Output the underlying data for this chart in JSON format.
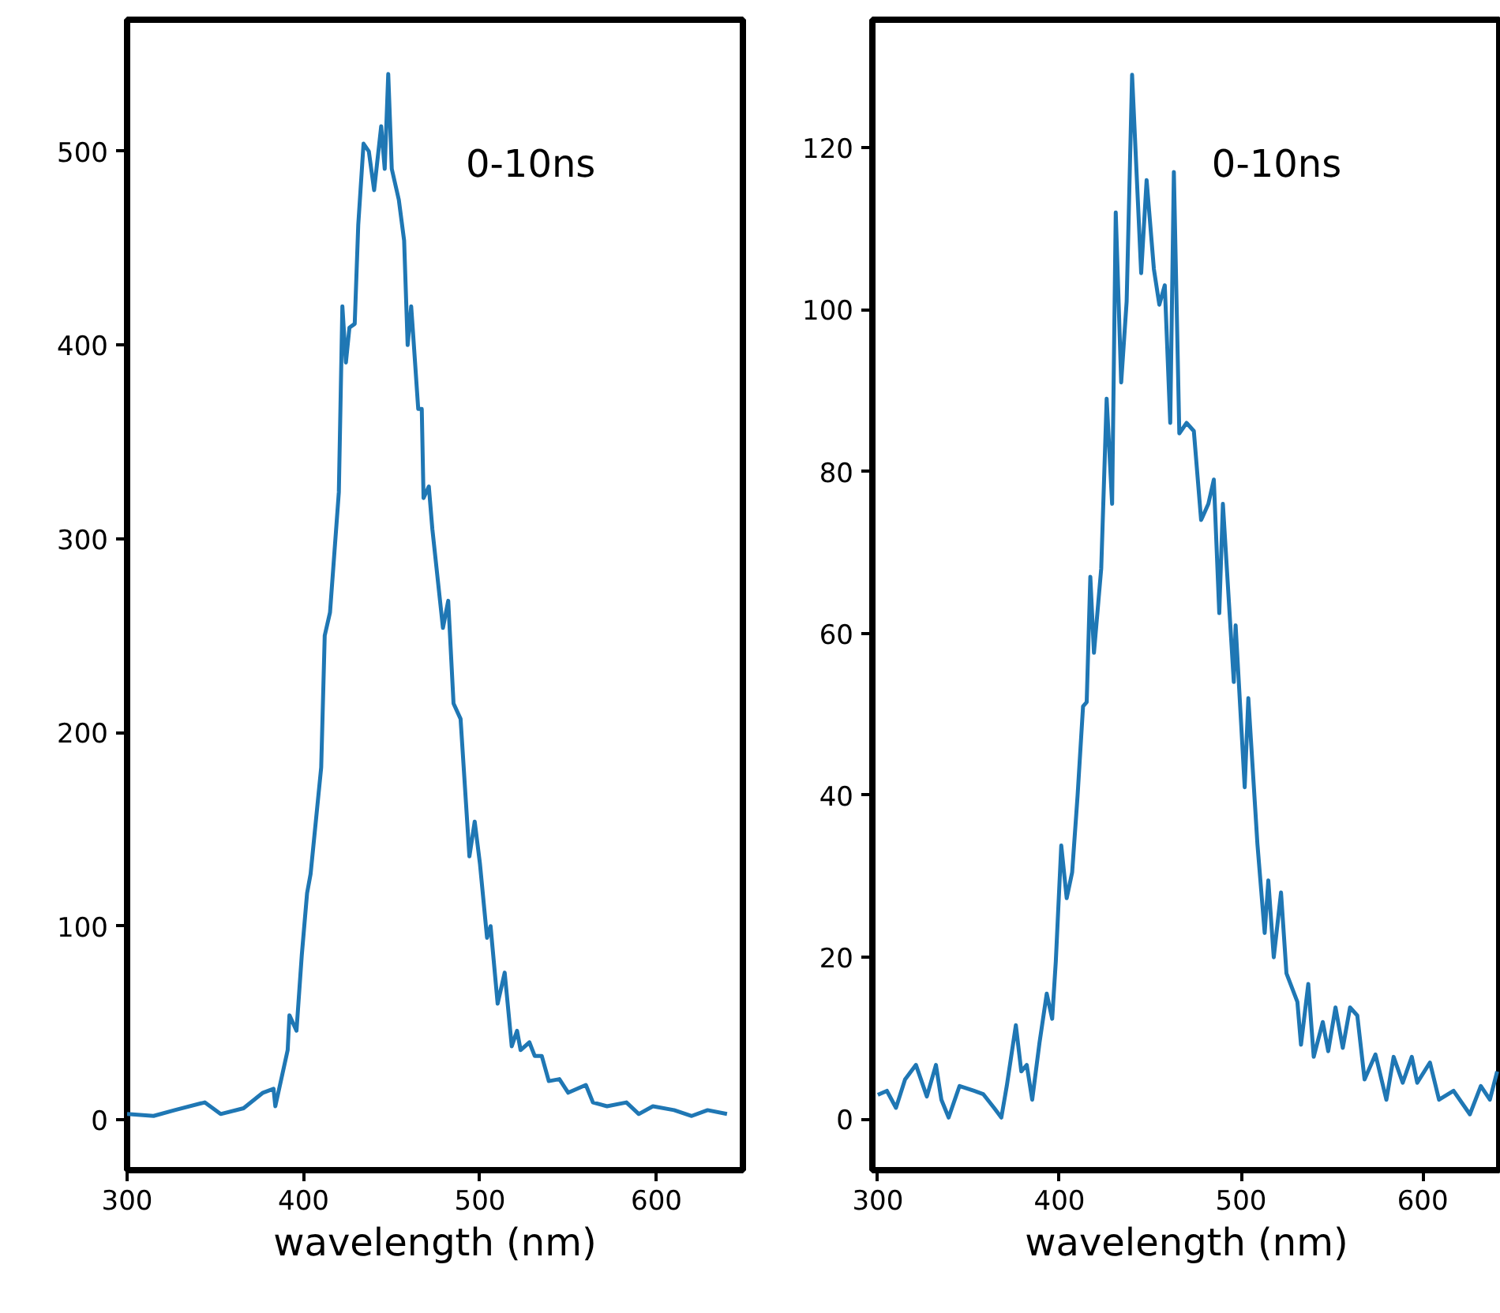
{
  "chart_data": [
    {
      "type": "line",
      "xlabel": "wavelength (nm)",
      "annotations": [
        "0-10ns"
      ],
      "xlim": [
        300,
        649
      ],
      "ylim": [
        -26,
        568
      ],
      "xticks": [
        300,
        400,
        500,
        600
      ],
      "yticks": [
        0,
        100,
        200,
        300,
        400,
        500
      ],
      "grid": false,
      "marker": "none",
      "line_style": "solid",
      "series": [
        {
          "color": "#1f77b4",
          "x": [
            300,
            315,
            327,
            344,
            353,
            366,
            377,
            383,
            384,
            391,
            392,
            396,
            399,
            402,
            404,
            410,
            412,
            415,
            420,
            422,
            424,
            426,
            429,
            431,
            434,
            437,
            440,
            444,
            446,
            448,
            450,
            454,
            457,
            459,
            461,
            462,
            465,
            467,
            468,
            471,
            473,
            479,
            482,
            485,
            489,
            494,
            497,
            500,
            504,
            506,
            510,
            514,
            518,
            521,
            523,
            528,
            531,
            535,
            539,
            545,
            550,
            560,
            564,
            572,
            583,
            590,
            598,
            610,
            620,
            629,
            640
          ],
          "values": [
            3,
            2,
            5,
            9,
            3,
            6,
            14,
            16,
            7,
            36,
            54,
            46,
            85,
            117,
            127,
            182,
            250,
            262,
            324,
            420,
            391,
            409,
            411,
            462,
            504,
            500,
            480,
            513,
            491,
            540,
            491,
            475,
            454,
            400,
            420,
            407,
            367,
            367,
            321,
            327,
            305,
            254,
            268,
            215,
            207,
            136,
            154,
            132,
            94,
            100,
            60,
            76,
            38,
            46,
            36,
            40,
            33,
            33,
            20,
            21,
            14,
            18,
            9,
            7,
            9,
            3,
            7,
            5,
            2,
            5,
            3
          ]
        }
      ]
    },
    {
      "type": "line",
      "xlabel": "wavelength (nm)",
      "annotations": [
        "0-10ns"
      ],
      "xlim": [
        297,
        643
      ],
      "ylim": [
        -6.3,
        135.8
      ],
      "xticks": [
        300,
        400,
        500,
        600
      ],
      "yticks": [
        0,
        20,
        40,
        60,
        80,
        100,
        120
      ],
      "grid": false,
      "marker": "none",
      "line_style": "solid",
      "series": [
        {
          "color": "#1f77b4",
          "x": [
            300,
            305,
            310,
            315,
            321,
            327,
            332,
            335,
            339,
            345,
            353,
            358,
            364,
            368,
            371,
            376,
            379,
            382,
            385,
            389,
            393,
            396,
            398,
            401,
            404,
            407,
            410,
            413,
            415,
            417,
            419,
            423,
            426,
            429,
            431,
            434,
            437,
            440,
            445,
            448,
            452,
            455,
            458,
            461,
            463,
            466,
            470,
            474,
            478,
            482,
            485,
            488,
            490,
            496,
            497,
            502,
            504,
            509,
            513,
            515,
            518,
            522,
            525,
            531,
            533,
            537,
            540,
            545,
            548,
            552,
            556,
            560,
            564,
            568,
            574,
            580,
            584,
            589,
            594,
            597,
            604,
            609,
            617,
            626,
            632,
            637,
            641
          ],
          "values": [
            3,
            3.5,
            1.4,
            4.9,
            6.7,
            2.8,
            6.7,
            2.4,
            0.2,
            4.1,
            3.5,
            3.1,
            1.4,
            0.2,
            4.1,
            11.6,
            5.9,
            6.7,
            2.4,
            9.4,
            15.5,
            12.4,
            19.5,
            33.8,
            27.3,
            30.5,
            40,
            51,
            51.5,
            67,
            57.6,
            68,
            89,
            76,
            112,
            91,
            101,
            129,
            104.5,
            116,
            105,
            100.6,
            103,
            86,
            117,
            84.7,
            86,
            85,
            74,
            76,
            79,
            62.5,
            76,
            54,
            61,
            41,
            52,
            34,
            23,
            29.5,
            20,
            28,
            18,
            14.5,
            9.2,
            16.7,
            7.7,
            12,
            8.4,
            13.8,
            8.8,
            13.8,
            12.8,
            4.9,
            8,
            2.4,
            7.7,
            4.5,
            7.7,
            4.5,
            7,
            2.4,
            3.5,
            0.6,
            4.1,
            2.4,
            5.9
          ]
        }
      ]
    }
  ]
}
